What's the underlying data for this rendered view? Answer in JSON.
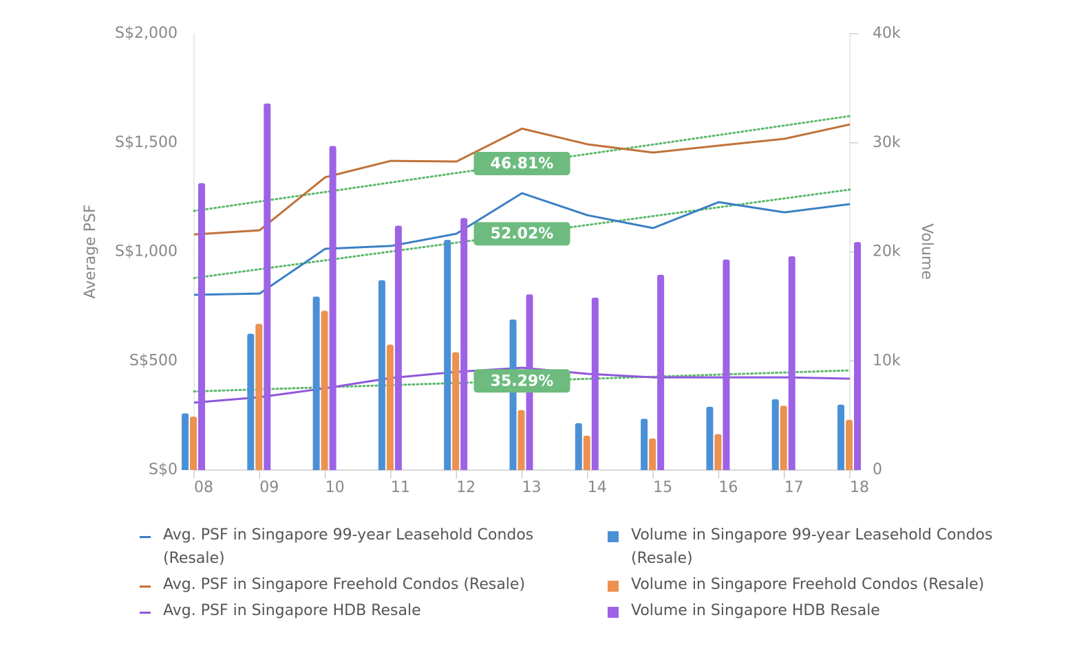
{
  "chart_data": {
    "type": "combo",
    "categories": [
      "08",
      "09",
      "10",
      "11",
      "12",
      "13",
      "14",
      "15",
      "16",
      "17",
      "18"
    ],
    "ylabel": "Average PSF",
    "y2label": "Volume",
    "ylim": [
      0,
      2000
    ],
    "yticks": [
      {
        "value": 0,
        "label": "S$0"
      },
      {
        "value": 500,
        "label": "S$500"
      },
      {
        "value": 1000,
        "label": "S$1,000"
      },
      {
        "value": 1500,
        "label": "S$1,500"
      },
      {
        "value": 2000,
        "label": "S$2,000"
      }
    ],
    "y2lim": [
      0,
      40000
    ],
    "y2ticks": [
      0,
      {
        "value": 10000,
        "label": "10k"
      },
      {
        "value": 20000,
        "label": "20k"
      },
      {
        "value": 30000,
        "label": "30k"
      },
      {
        "value": 40000,
        "label": "40k"
      }
    ],
    "grid": false,
    "series": [
      {
        "name": "Avg. PSF in Singapore 99-year Leasehold Condos (Resale)",
        "type": "line",
        "color": "#3b7fc4",
        "trend_label": "52.02%",
        "values": [
          803,
          809,
          1014,
          1027,
          1083,
          1269,
          1168,
          1109,
          1228,
          1181,
          1219
        ]
      },
      {
        "name": "Avg. PSF in Singapore Freehold Condos (Resale)",
        "type": "line",
        "color": "#c0723a",
        "trend_label": "46.81%",
        "values": [
          1080,
          1099,
          1342,
          1417,
          1414,
          1565,
          1493,
          1455,
          1487,
          1518,
          1584
        ]
      },
      {
        "name": "Avg. PSF in Singapore HDB Resale",
        "type": "line",
        "color": "#8e57dc",
        "trend_label": "35.29%",
        "values": [
          309,
          334,
          375,
          422,
          450,
          469,
          441,
          425,
          425,
          425,
          419
        ]
      },
      {
        "name": "Volume in Singapore 99-year Leasehold Condos (Resale)",
        "type": "bar",
        "axis": "y2",
        "color": "#4a90d6",
        "values": [
          5200,
          12500,
          15900,
          17400,
          21100,
          13800,
          4300,
          4700,
          5800,
          6500,
          6000
        ]
      },
      {
        "name": "Volume in Singapore Freehold Condos (Resale)",
        "type": "bar",
        "axis": "y2",
        "color": "#ec9150",
        "values": [
          4900,
          13400,
          14600,
          11500,
          10800,
          5500,
          3150,
          2900,
          3300,
          5900,
          4600
        ]
      },
      {
        "name": "Volume in Singapore HDB Resale",
        "type": "bar",
        "axis": "y2",
        "color": "#9d62e6",
        "values": [
          26300,
          33600,
          29700,
          22400,
          23100,
          16100,
          15800,
          17900,
          19300,
          19600,
          20900
        ]
      }
    ]
  }
}
